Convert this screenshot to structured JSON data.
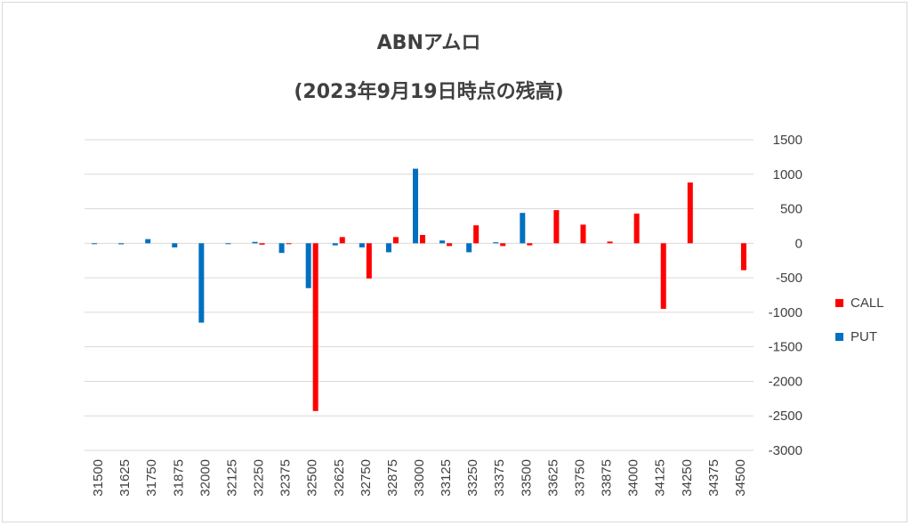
{
  "chart_data": {
    "type": "bar",
    "title": "ABNアムロ",
    "subtitle": "(2023年9月19日時点の残高)",
    "categories": [
      "31500",
      "31625",
      "31750",
      "31875",
      "32000",
      "32125",
      "32250",
      "32375",
      "32500",
      "32625",
      "32750",
      "32875",
      "33000",
      "33125",
      "33250",
      "33375",
      "33500",
      "33625",
      "33750",
      "33875",
      "34000",
      "34125",
      "34250",
      "34375",
      "34500"
    ],
    "ylim": [
      -3000,
      1500
    ],
    "yticks": [
      1500,
      1000,
      500,
      0,
      -500,
      -1000,
      -1500,
      -2000,
      -2500,
      -3000
    ],
    "grid": true,
    "legend_position": "right",
    "series": [
      {
        "name": "PUT",
        "color": "#0070C0",
        "values": [
          -5,
          -15,
          60,
          -60,
          -1150,
          -10,
          20,
          -140,
          -650,
          -30,
          -60,
          -130,
          1080,
          40,
          -130,
          15,
          440,
          0,
          0,
          0,
          0,
          0,
          0,
          0,
          0
        ]
      },
      {
        "name": "CALL",
        "color": "#FF0000",
        "values": [
          0,
          0,
          0,
          0,
          0,
          0,
          -20,
          -5,
          -2430,
          90,
          -510,
          90,
          120,
          -40,
          260,
          -40,
          -30,
          480,
          270,
          25,
          430,
          -950,
          880,
          0,
          -390
        ]
      }
    ]
  },
  "legend": {
    "items": [
      {
        "name": "CALL",
        "color": "#FF0000"
      },
      {
        "name": "PUT",
        "color": "#0070C0"
      }
    ]
  }
}
